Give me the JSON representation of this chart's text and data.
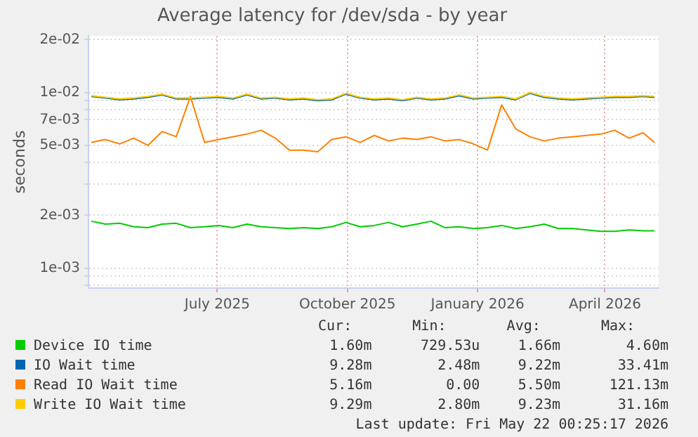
{
  "chart_data": {
    "type": "line",
    "title": "Average latency for /dev/sda - by year",
    "ylabel": "seconds",
    "x": [
      "2025-04-18",
      "2025-04-28",
      "2025-05-08",
      "2025-05-18",
      "2025-05-28",
      "2025-06-07",
      "2025-06-17",
      "2025-06-27",
      "2025-07-07",
      "2025-07-17",
      "2025-07-27",
      "2025-08-06",
      "2025-08-16",
      "2025-08-26",
      "2025-09-05",
      "2025-09-15",
      "2025-09-25",
      "2025-10-05",
      "2025-10-15",
      "2025-10-25",
      "2025-11-04",
      "2025-11-14",
      "2025-11-24",
      "2025-12-04",
      "2025-12-14",
      "2025-12-24",
      "2026-01-03",
      "2026-01-13",
      "2026-01-23",
      "2026-02-02",
      "2026-02-12",
      "2026-02-22",
      "2026-03-04",
      "2026-03-14",
      "2026-03-24",
      "2026-04-03",
      "2026-04-13",
      "2026-04-23",
      "2026-05-03",
      "2026-05-13",
      "2026-05-21"
    ],
    "series": [
      {
        "name": "Device IO time",
        "color": "#00cc00",
        "values": [
          0.00185,
          0.00178,
          0.0018,
          0.00172,
          0.0017,
          0.00178,
          0.0018,
          0.0017,
          0.00172,
          0.00175,
          0.0017,
          0.00178,
          0.00172,
          0.0017,
          0.00168,
          0.0017,
          0.00168,
          0.00172,
          0.00182,
          0.00172,
          0.00175,
          0.00182,
          0.00172,
          0.00178,
          0.00185,
          0.0017,
          0.00172,
          0.00168,
          0.0017,
          0.00175,
          0.00168,
          0.00172,
          0.00178,
          0.00168,
          0.00168,
          0.00165,
          0.00162,
          0.00162,
          0.00165,
          0.00163,
          0.00163
        ]
      },
      {
        "name": "IO Wait time",
        "color": "#0066b3",
        "values": [
          0.0095,
          0.0093,
          0.0091,
          0.0092,
          0.0094,
          0.0097,
          0.0092,
          0.0092,
          0.0093,
          0.0094,
          0.0092,
          0.0097,
          0.0092,
          0.0093,
          0.0091,
          0.0092,
          0.009,
          0.0091,
          0.0098,
          0.0093,
          0.0091,
          0.0092,
          0.009,
          0.0093,
          0.0091,
          0.0092,
          0.0096,
          0.0092,
          0.0093,
          0.0094,
          0.0091,
          0.0099,
          0.0094,
          0.0092,
          0.0091,
          0.0092,
          0.0093,
          0.0094,
          0.0094,
          0.0095,
          0.0094
        ]
      },
      {
        "name": "Read IO Wait time",
        "color": "#ff8000",
        "values": [
          0.0052,
          0.0054,
          0.0051,
          0.0055,
          0.005,
          0.006,
          0.0056,
          0.0095,
          0.0052,
          0.0054,
          0.0056,
          0.0058,
          0.0061,
          0.0055,
          0.0047,
          0.0047,
          0.0046,
          0.0054,
          0.0056,
          0.0052,
          0.0057,
          0.0053,
          0.0055,
          0.0054,
          0.0056,
          0.0053,
          0.0054,
          0.0051,
          0.0047,
          0.0085,
          0.0062,
          0.0056,
          0.0053,
          0.0055,
          0.0056,
          0.0057,
          0.0058,
          0.0061,
          0.0055,
          0.0059,
          0.0052
        ]
      },
      {
        "name": "Write IO Wait time",
        "color": "#ffcc00",
        "values": [
          0.0096,
          0.0094,
          0.0092,
          0.0093,
          0.0095,
          0.0098,
          0.0093,
          0.0093,
          0.0094,
          0.0095,
          0.0093,
          0.0098,
          0.0093,
          0.0094,
          0.0092,
          0.0093,
          0.0091,
          0.0092,
          0.0099,
          0.0094,
          0.0092,
          0.0093,
          0.0091,
          0.0094,
          0.0092,
          0.0093,
          0.0097,
          0.0093,
          0.0094,
          0.0095,
          0.0092,
          0.01,
          0.0095,
          0.0093,
          0.0092,
          0.0093,
          0.0094,
          0.0095,
          0.0095,
          0.0096,
          0.0095
        ]
      }
    ],
    "xlim": [
      "2025-04-16",
      "2026-05-24"
    ],
    "xticks": [
      {
        "value": "2025-07-16",
        "label": "July 2025"
      },
      {
        "value": "2025-10-16",
        "label": "October 2025"
      },
      {
        "value": "2026-01-16",
        "label": "January 2026"
      },
      {
        "value": "2026-04-16",
        "label": "April 2026"
      }
    ],
    "ylim": [
      0.00077,
      0.021
    ],
    "yticks": [
      {
        "value": 0.0008,
        "label": null
      },
      {
        "value": 0.0009,
        "label": null
      },
      {
        "value": 0.001,
        "label": "1e-03"
      },
      {
        "value": 0.002,
        "label": "2e-03"
      },
      {
        "value": 0.003,
        "label": null
      },
      {
        "value": 0.004,
        "label": null
      },
      {
        "value": 0.005,
        "label": "5e-03"
      },
      {
        "value": 0.007,
        "label": "7e-03"
      },
      {
        "value": 0.008,
        "label": null
      },
      {
        "value": 0.009,
        "label": null
      },
      {
        "value": 0.01,
        "label": "1e-02"
      },
      {
        "value": 0.02,
        "label": "2e-02"
      }
    ],
    "log": "y",
    "grid": true,
    "legend": "bottom",
    "marker": "none",
    "line_style": "solid",
    "annotations": [
      "Cur:",
      "Min:",
      "Avg:",
      "Max:",
      "1.60m",
      "729.53u",
      "1.66m",
      "4.60m",
      "9.28m",
      "2.48m",
      "9.22m",
      "33.41m",
      "5.16m",
      "0.00",
      "5.50m",
      "121.13m",
      "9.29m",
      "2.80m",
      "9.23m",
      "31.16m",
      "Last update: Fri May 22 00:25:17 2026"
    ]
  }
}
